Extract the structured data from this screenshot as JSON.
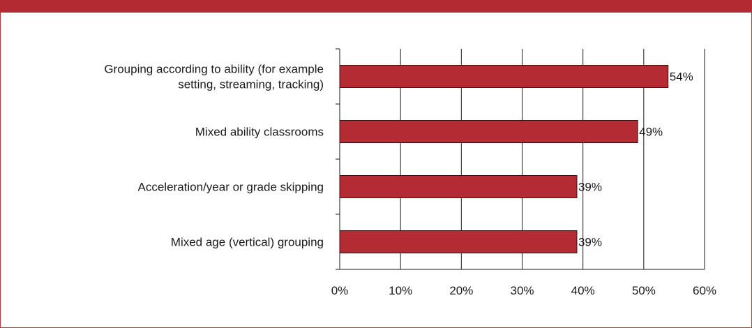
{
  "colors": {
    "accent": "#b32a33",
    "bar_fill": "#b52b34",
    "bar_stroke": "#3a0e10",
    "grid": "#1a1a1a"
  },
  "chart_data": {
    "type": "bar",
    "orientation": "horizontal",
    "categories": [
      [
        "Grouping according to ability (for example",
        "setting, streaming, tracking)"
      ],
      [
        "Mixed ability classrooms"
      ],
      [
        "Acceleration/year or grade skipping"
      ],
      [
        "Mixed age (vertical) grouping"
      ]
    ],
    "values": [
      54,
      49,
      39,
      39
    ],
    "value_labels": [
      "54%",
      "49%",
      "39%",
      "39%"
    ],
    "xlim": [
      0,
      60
    ],
    "xticks": [
      0,
      10,
      20,
      30,
      40,
      50,
      60
    ],
    "xtick_labels": [
      "0%",
      "10%",
      "20%",
      "30%",
      "40%",
      "50%",
      "60%"
    ],
    "grid": true,
    "title": "",
    "xlabel": "",
    "ylabel": ""
  }
}
